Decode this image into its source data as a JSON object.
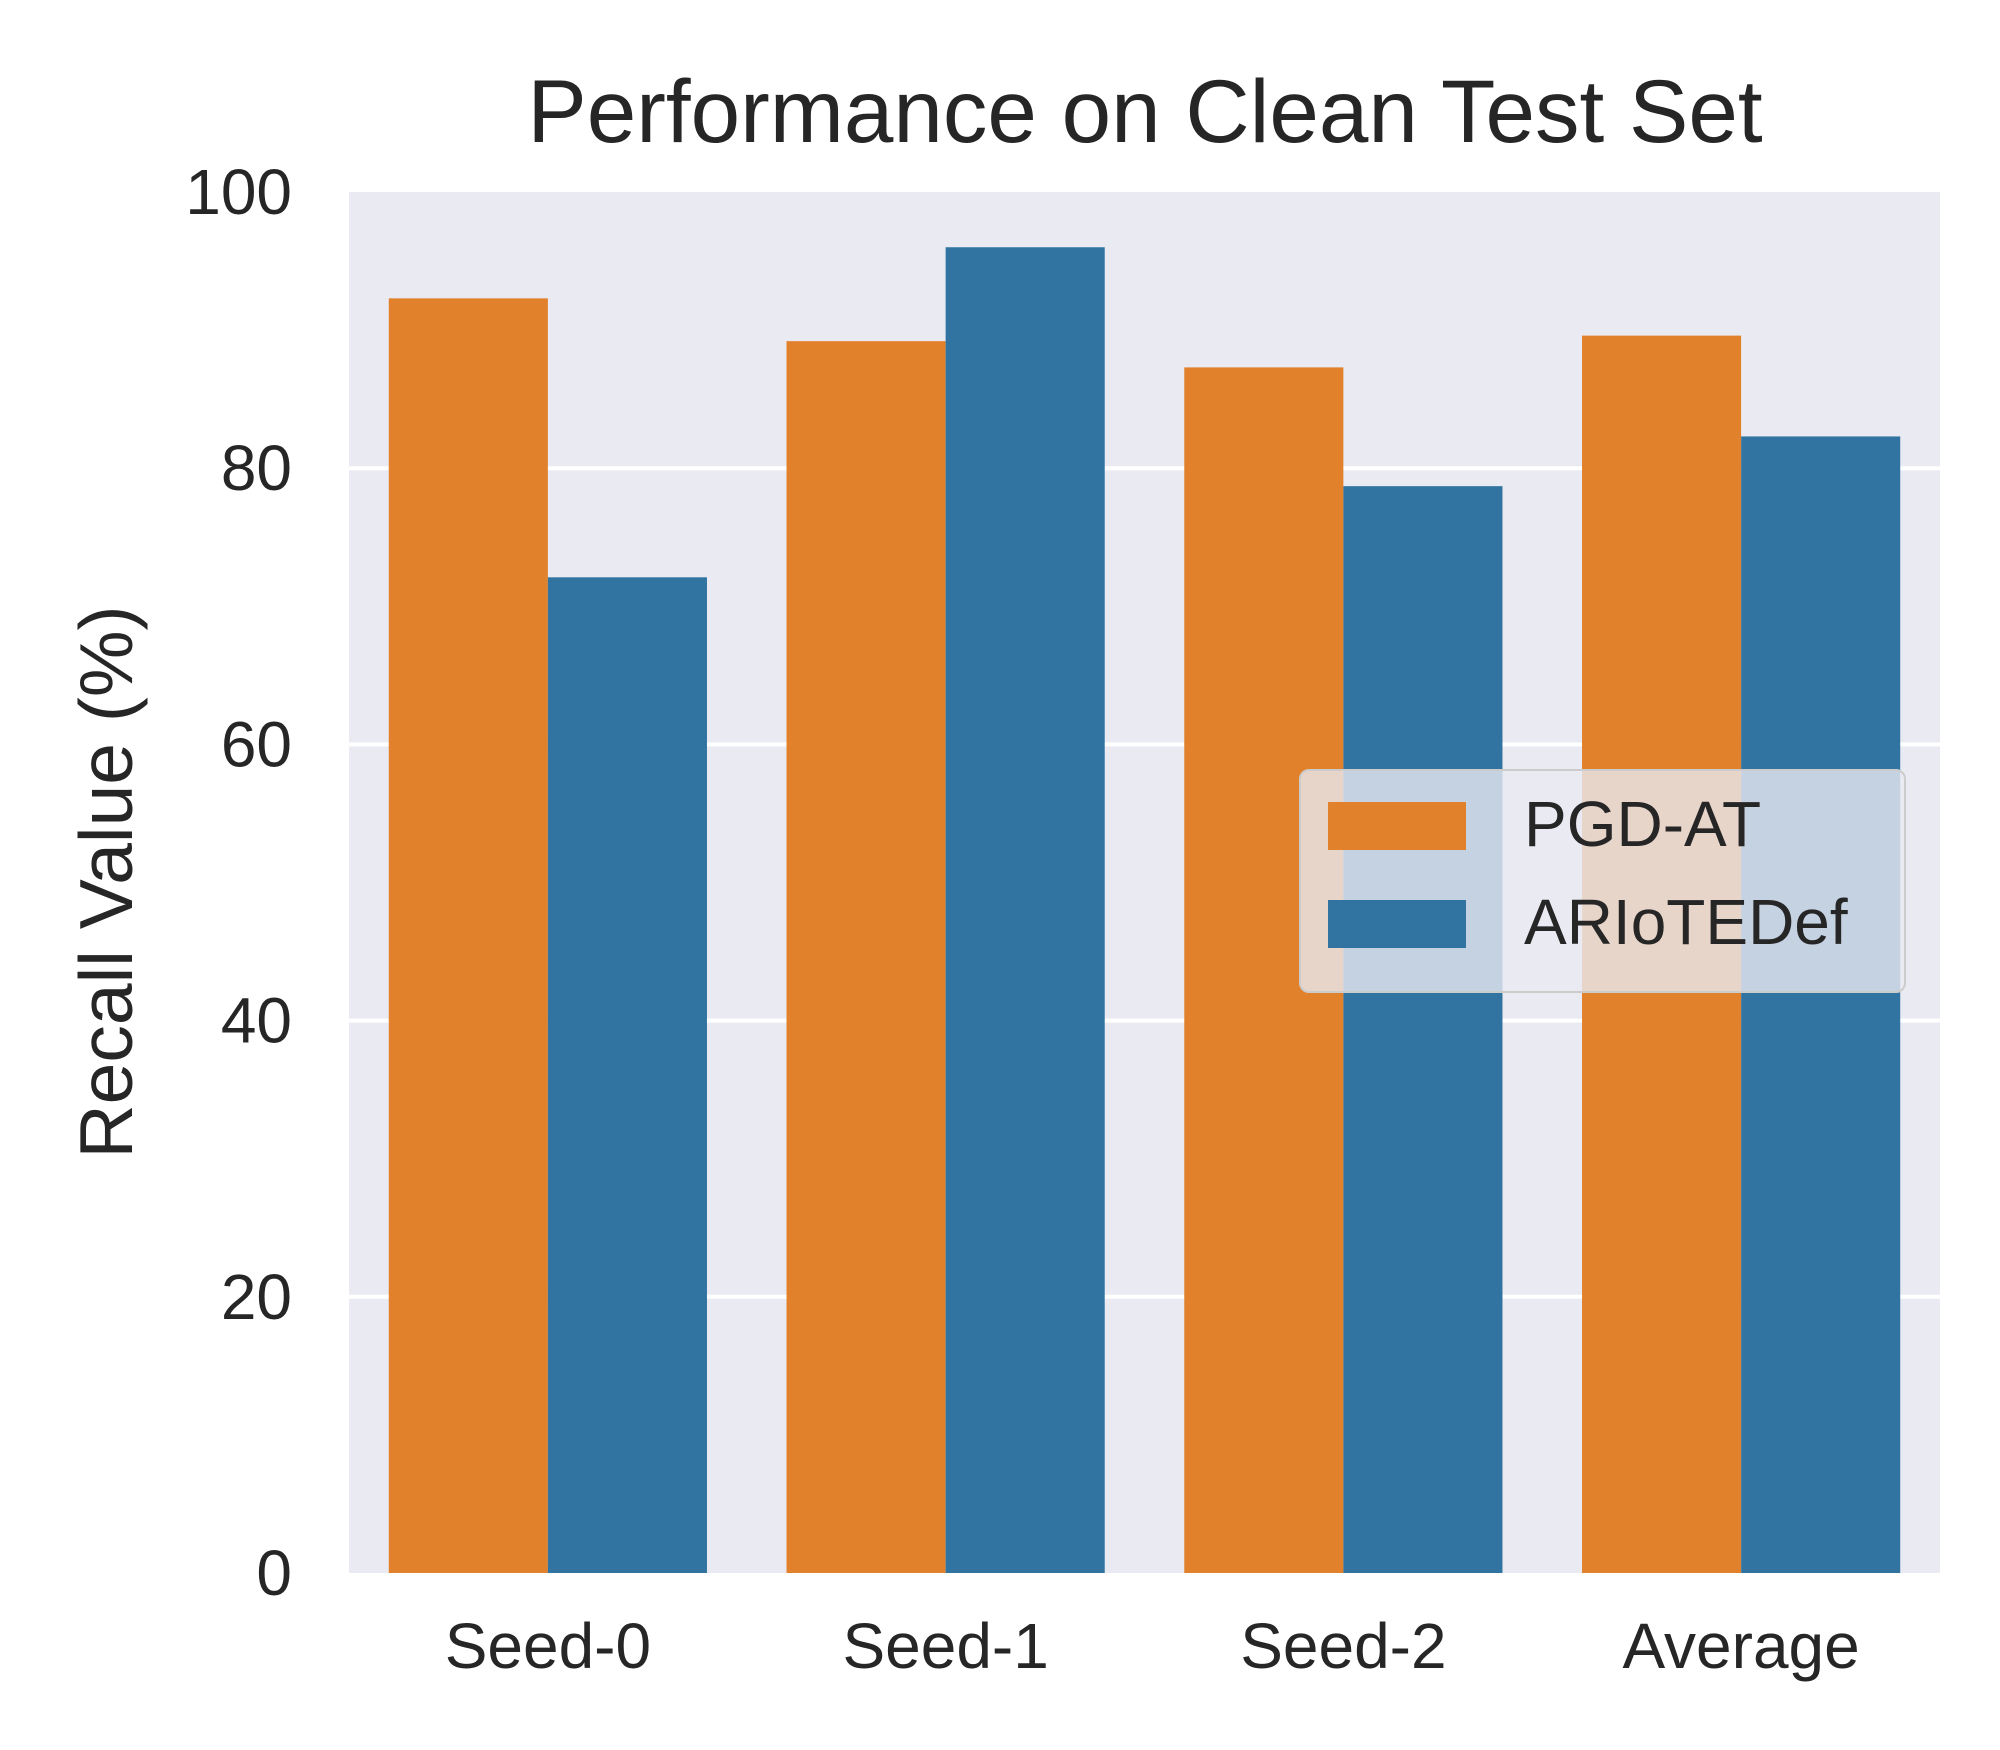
{
  "chart_data": {
    "type": "bar",
    "title": "Performance on Clean Test Set",
    "xlabel": "",
    "ylabel": "Recall Value (%)",
    "categories": [
      "Seed-0",
      "Seed-1",
      "Seed-2",
      "Average"
    ],
    "ylim": [
      0,
      100
    ],
    "yticks": [
      "0",
      "20",
      "40",
      "60",
      "80",
      "100"
    ],
    "grid": true,
    "legend_position": "center-right",
    "series": [
      {
        "name": "PGD-AT",
        "color": "#e1812c",
        "values": [
          92.3,
          89.2,
          87.3,
          89.6
        ]
      },
      {
        "name": "ARIoTEDef",
        "color": "#3274a1",
        "values": [
          72.1,
          96.0,
          78.7,
          82.3
        ]
      }
    ],
    "background_color": "#eaeaf2",
    "grid_color": "#ffffff"
  }
}
